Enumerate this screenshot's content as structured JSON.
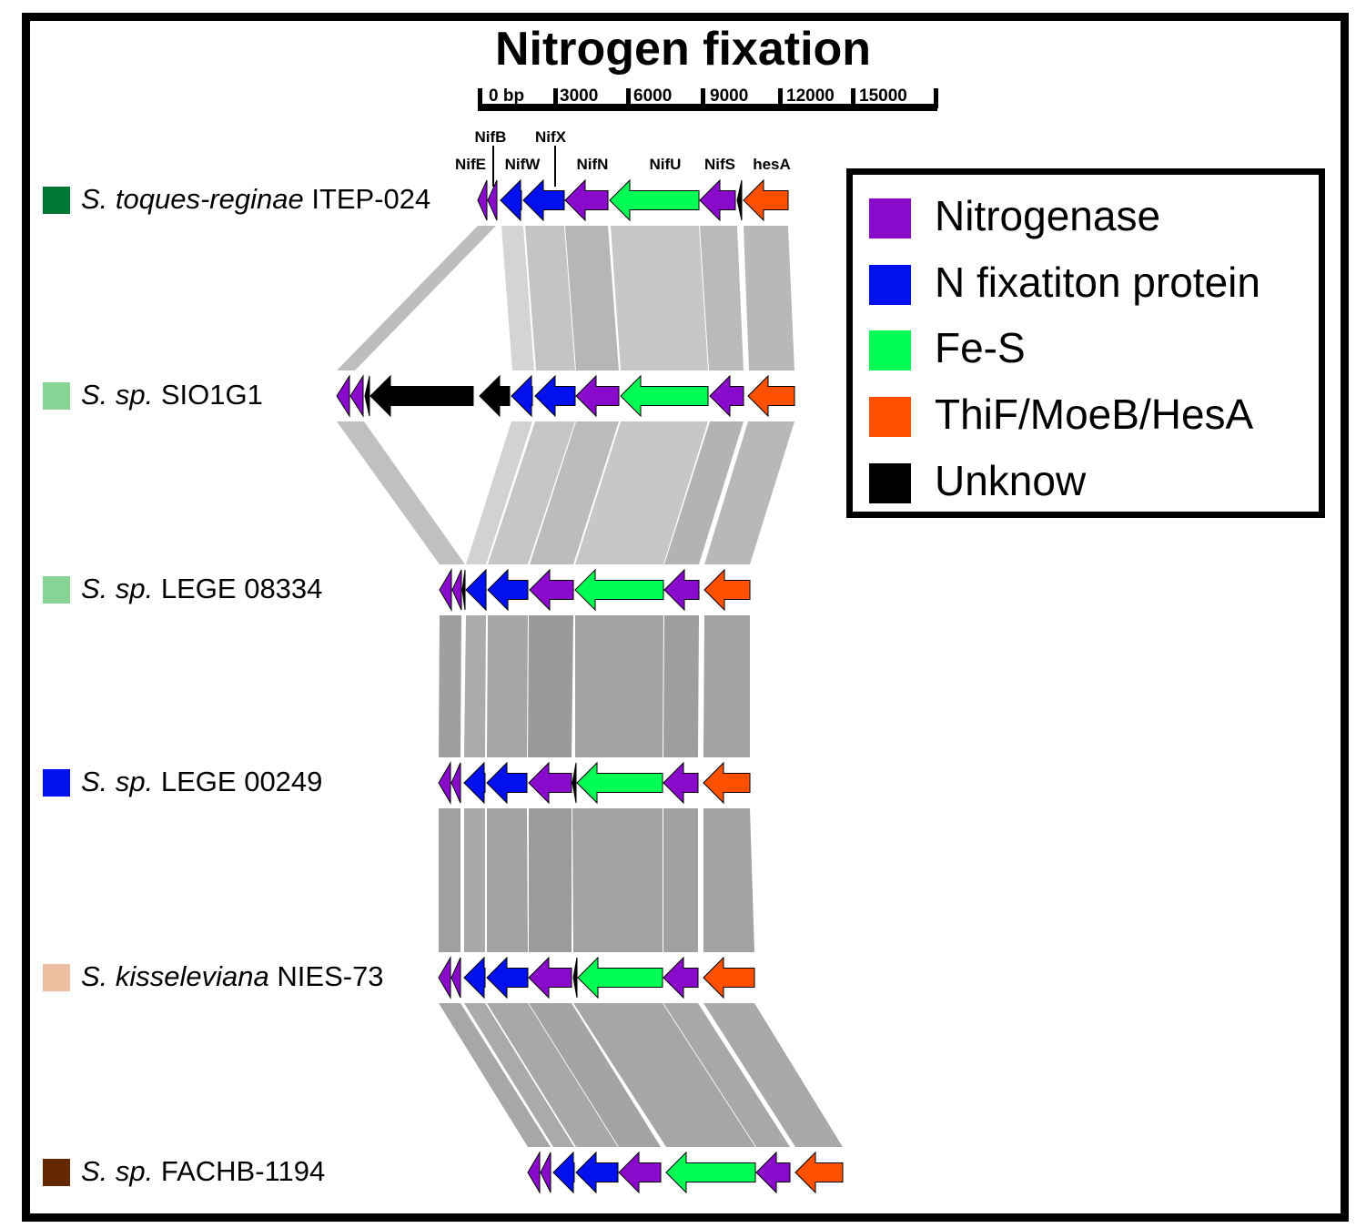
{
  "title": "Nitrogen fixation",
  "scale_bar": {
    "ticks": [
      "0 bp",
      "3000",
      "6000",
      "9000",
      "12000",
      "15000"
    ]
  },
  "gene_names": [
    "NifB",
    "NifX",
    "NifE",
    "NifW",
    "NifN",
    "NifU",
    "NifS",
    "hesA"
  ],
  "legend": [
    {
      "label": "Nitrogenase",
      "color": "#8a0acc"
    },
    {
      "label": "N fixatiton protein",
      "color": "#0010ee"
    },
    {
      "label": "Fe-S",
      "color": "#00ff55"
    },
    {
      "label": "ThiF/MoeB/HesA",
      "color": "#ff5000"
    },
    {
      "label": "Unknow",
      "color": "#000000"
    }
  ],
  "species": [
    {
      "genus": "S.",
      "epithet": "toques-reginae",
      "strain": "ITEP-024",
      "color": "#007733"
    },
    {
      "genus": "S.",
      "epithet": "sp.",
      "strain": "SIO1G1",
      "color": "#88d495"
    },
    {
      "genus": "S.",
      "epithet": "sp.",
      "strain": "LEGE 08334",
      "color": "#88d495"
    },
    {
      "genus": "S.",
      "epithet": "sp.",
      "strain": "LEGE 00249",
      "color": "#0010ee"
    },
    {
      "genus": "S.",
      "epithet": "kisseleviana",
      "strain": "NIES-73",
      "color": "#ebbfa0"
    },
    {
      "genus": "S.",
      "epithet": "sp.",
      "strain": "FACHB-1194",
      "color": "#652800"
    }
  ]
}
